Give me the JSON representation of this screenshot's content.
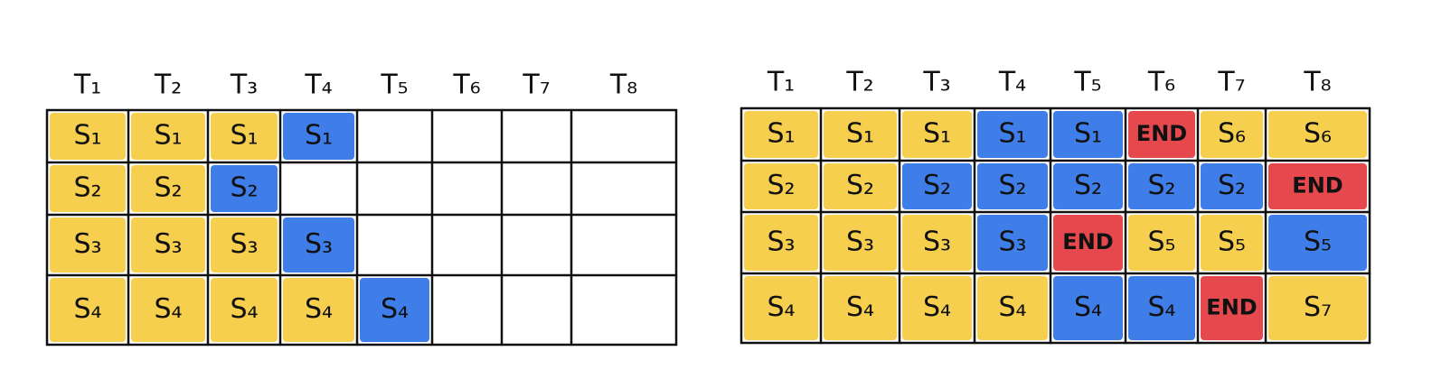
{
  "grids": [
    {
      "headers": [
        "T₁",
        "T₂",
        "T₃",
        "T₄",
        "T₅",
        "T₆",
        "T₇",
        "T₈"
      ],
      "rows": [
        [
          {
            "label": "S₁",
            "color": "#f7cf4f"
          },
          {
            "label": "S₁",
            "color": "#f7cf4f"
          },
          {
            "label": "S₁",
            "color": "#f7cf4f"
          },
          {
            "label": "S₁",
            "color": "#3f7ee8"
          },
          null,
          null,
          null,
          null
        ],
        [
          {
            "label": "S₂",
            "color": "#f7cf4f"
          },
          {
            "label": "S₂",
            "color": "#f7cf4f"
          },
          {
            "label": "S₂",
            "color": "#3f7ee8"
          },
          null,
          null,
          null,
          null,
          null
        ],
        [
          {
            "label": "S₃",
            "color": "#f7cf4f"
          },
          {
            "label": "S₃",
            "color": "#f7cf4f"
          },
          {
            "label": "S₃",
            "color": "#f7cf4f"
          },
          {
            "label": "S₃",
            "color": "#3f7ee8"
          },
          null,
          null,
          null,
          null
        ],
        [
          {
            "label": "S₄",
            "color": "#f7cf4f"
          },
          {
            "label": "S₄",
            "color": "#f7cf4f"
          },
          {
            "label": "S₄",
            "color": "#f7cf4f"
          },
          {
            "label": "S₄",
            "color": "#f7cf4f"
          },
          {
            "label": "S₄",
            "color": "#3f7ee8"
          },
          null,
          null,
          null
        ]
      ]
    },
    {
      "headers": [
        "T₁",
        "T₂",
        "T₃",
        "T₄",
        "T₅",
        "T₆",
        "T₇",
        "T₈"
      ],
      "rows": [
        [
          {
            "label": "S₁",
            "color": "#f7cf4f"
          },
          {
            "label": "S₁",
            "color": "#f7cf4f"
          },
          {
            "label": "S₁",
            "color": "#f7cf4f"
          },
          {
            "label": "S₁",
            "color": "#3f7ee8"
          },
          {
            "label": "S₁",
            "color": "#3f7ee8"
          },
          {
            "label": "END",
            "color": "#e5484d"
          },
          {
            "label": "S₆",
            "color": "#f7cf4f"
          },
          {
            "label": "S₆",
            "color": "#f7cf4f"
          }
        ],
        [
          {
            "label": "S₂",
            "color": "#f7cf4f"
          },
          {
            "label": "S₂",
            "color": "#f7cf4f"
          },
          {
            "label": "S₂",
            "color": "#3f7ee8"
          },
          {
            "label": "S₂",
            "color": "#3f7ee8"
          },
          {
            "label": "S₂",
            "color": "#3f7ee8"
          },
          {
            "label": "S₂",
            "color": "#3f7ee8"
          },
          {
            "label": "S₂",
            "color": "#3f7ee8"
          },
          {
            "label": "END",
            "color": "#e5484d"
          }
        ],
        [
          {
            "label": "S₃",
            "color": "#f7cf4f"
          },
          {
            "label": "S₃",
            "color": "#f7cf4f"
          },
          {
            "label": "S₃",
            "color": "#f7cf4f"
          },
          {
            "label": "S₃",
            "color": "#3f7ee8"
          },
          {
            "label": "END",
            "color": "#e5484d"
          },
          {
            "label": "S₅",
            "color": "#f7cf4f"
          },
          {
            "label": "S₅",
            "color": "#f7cf4f"
          },
          {
            "label": "S₅",
            "color": "#3f7ee8"
          }
        ],
        [
          {
            "label": "S₄",
            "color": "#f7cf4f"
          },
          {
            "label": "S₄",
            "color": "#f7cf4f"
          },
          {
            "label": "S₄",
            "color": "#f7cf4f"
          },
          {
            "label": "S₄",
            "color": "#f7cf4f"
          },
          {
            "label": "S₄",
            "color": "#3f7ee8"
          },
          {
            "label": "S₄",
            "color": "#3f7ee8"
          },
          {
            "label": "END",
            "color": "#e5484d"
          },
          {
            "label": "S₇",
            "color": "#f7cf4f"
          }
        ]
      ]
    }
  ]
}
